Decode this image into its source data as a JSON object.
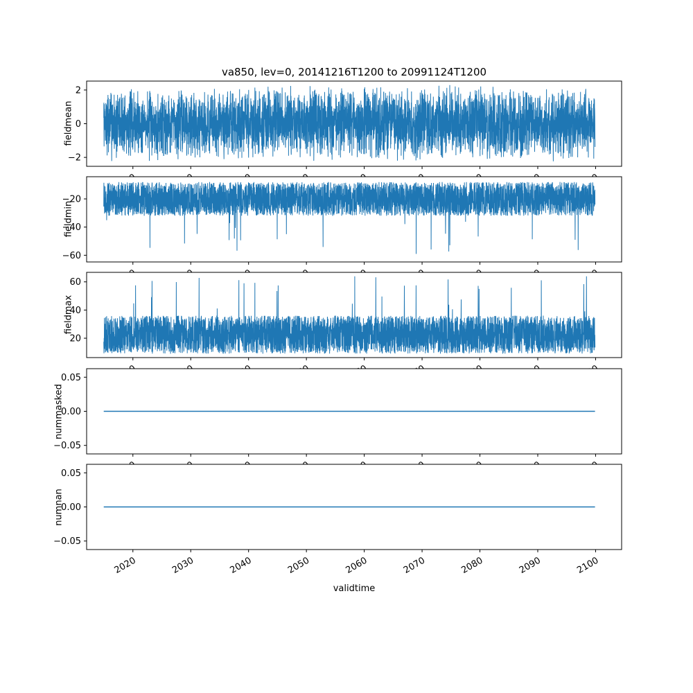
{
  "figure": {
    "title": "va850, lev=0, 20141216T1200 to 20991124T1200",
    "xlabel": "validtime",
    "line_color": "#1f77b4",
    "axis_color": "#000000",
    "background_color": "#ffffff",
    "x_axis": {
      "xlim": [
        2012.0,
        2104.5
      ],
      "xticks": [
        2020,
        2030,
        2040,
        2050,
        2060,
        2070,
        2080,
        2090,
        2100
      ],
      "xtick_labels": [
        "2020",
        "2030",
        "2040",
        "2050",
        "2060",
        "2070",
        "2080",
        "2090",
        "2100"
      ],
      "tick_label_rotation_deg": 30,
      "data_x_range": [
        2014.96,
        2099.9
      ]
    }
  },
  "chart_data": [
    {
      "type": "line",
      "ylabel": "fieldmean",
      "ylim": [
        -2.53,
        2.53
      ],
      "yticks": [
        -2,
        0,
        2
      ],
      "ytick_labels": [
        "−2",
        "0",
        "2"
      ],
      "series": {
        "name": "fieldmean",
        "kind": "dense-noise-timeseries",
        "baseline": 0,
        "typical_range": [
          -1.5,
          1.5
        ],
        "extremes": [
          -2.3,
          2.3
        ]
      },
      "synth": {
        "kind": "triangular",
        "center": 0,
        "half_width": 2.3,
        "n_points": 4200,
        "seed": 7
      },
      "line_width": 1
    },
    {
      "type": "line",
      "ylabel": "fieldmin",
      "ylim": [
        -64.75,
        -4.25
      ],
      "yticks": [
        -60,
        -40,
        -20
      ],
      "ytick_labels": [
        "−60",
        "−40",
        "−20"
      ],
      "series": {
        "name": "fieldmin",
        "kind": "dense-noise-timeseries",
        "typical_range": [
          -32,
          -8
        ],
        "extremes": [
          -62,
          -7
        ]
      },
      "synth": {
        "kind": "uniform_band",
        "lo": -32,
        "hi": -8,
        "spike_prob": 0.006,
        "spike_to": -62,
        "n_points": 4200,
        "seed": 101
      },
      "line_width": 1
    },
    {
      "type": "line",
      "ylabel": "fieldmax",
      "ylim": [
        6.25,
        66.75
      ],
      "yticks": [
        20,
        40,
        60
      ],
      "ytick_labels": [
        "20",
        "40",
        "60"
      ],
      "series": {
        "name": "fieldmax",
        "kind": "dense-noise-timeseries",
        "typical_range": [
          9,
          36
        ],
        "extremes": [
          8,
          64
        ]
      },
      "synth": {
        "kind": "uniform_band",
        "lo": 9,
        "hi": 36,
        "spike_prob": 0.007,
        "spike_to": 64,
        "n_points": 4200,
        "seed": 202
      },
      "line_width": 1
    },
    {
      "type": "line",
      "ylabel": "nummasked",
      "ylim": [
        -0.0625,
        0.0625
      ],
      "yticks": [
        -0.05,
        0,
        0.05
      ],
      "ytick_labels": [
        "−0.05",
        "0.00",
        "0.05"
      ],
      "series": {
        "name": "nummasked",
        "kind": "constant",
        "value": 0
      },
      "synth": {
        "kind": "constant",
        "value": 0,
        "n_points": 2,
        "seed": 1
      },
      "line_width": 1.5
    },
    {
      "type": "line",
      "ylabel": "numnan",
      "ylim": [
        -0.0625,
        0.0625
      ],
      "yticks": [
        -0.05,
        0,
        0.05
      ],
      "ytick_labels": [
        "−0.05",
        "0.00",
        "0.05"
      ],
      "series": {
        "name": "numnan",
        "kind": "constant",
        "value": 0
      },
      "synth": {
        "kind": "constant",
        "value": 0,
        "n_points": 2,
        "seed": 2
      },
      "line_width": 1.5
    }
  ]
}
